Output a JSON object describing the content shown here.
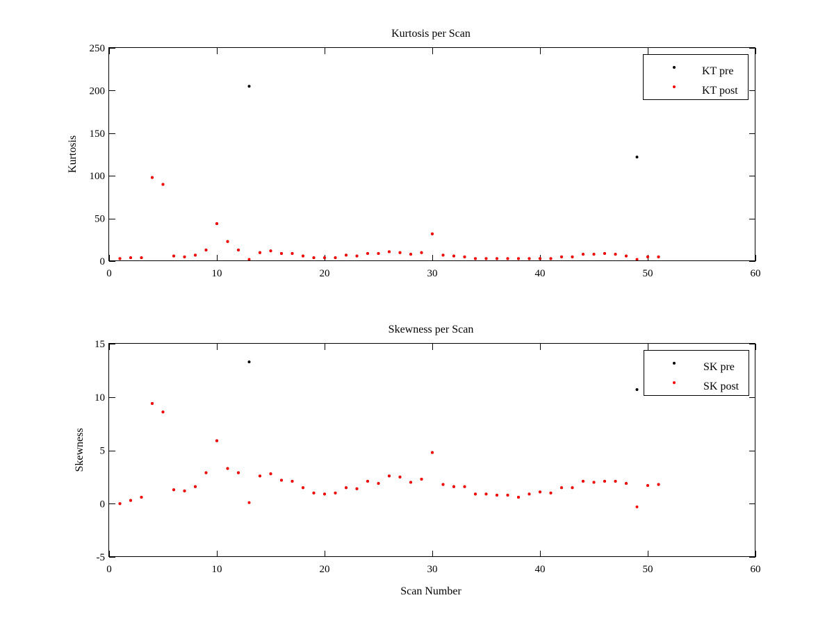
{
  "chart_data": [
    {
      "type": "scatter",
      "title": "Kurtosis per Scan",
      "xlabel": "",
      "ylabel": "Kurtosis",
      "xlim": [
        0,
        60
      ],
      "ylim": [
        0,
        250
      ],
      "xticks": [
        0,
        10,
        20,
        30,
        40,
        50,
        60
      ],
      "yticks": [
        0,
        50,
        100,
        150,
        200,
        250
      ],
      "grid": false,
      "legend_position": "top-right",
      "series": [
        {
          "name": "KT pre",
          "color": "#000000",
          "marker": "dot",
          "x": [
            1,
            2,
            3,
            4,
            5,
            6,
            7,
            8,
            9,
            10,
            11,
            12,
            13,
            14,
            15,
            16,
            17,
            18,
            19,
            20,
            21,
            22,
            23,
            24,
            25,
            26,
            27,
            28,
            29,
            30,
            31,
            32,
            33,
            34,
            35,
            36,
            37,
            38,
            39,
            40,
            41,
            42,
            43,
            44,
            45,
            46,
            47,
            48,
            49,
            50,
            51
          ],
          "y": [
            3,
            4,
            4,
            98,
            90,
            6,
            5,
            7,
            13,
            44,
            23,
            13,
            205,
            10,
            12,
            9,
            9,
            6,
            4,
            4,
            4,
            7,
            6,
            9,
            9,
            11,
            10,
            8,
            10,
            32,
            7,
            6,
            5,
            3,
            3,
            3,
            3,
            3,
            3,
            3,
            3,
            5,
            5,
            8,
            8,
            9,
            8,
            6,
            122,
            5,
            5
          ]
        },
        {
          "name": "KT post",
          "color": "#ff0000",
          "marker": "dot",
          "x": [
            1,
            2,
            3,
            4,
            5,
            6,
            7,
            8,
            9,
            10,
            11,
            12,
            13,
            14,
            15,
            16,
            17,
            18,
            19,
            20,
            21,
            22,
            23,
            24,
            25,
            26,
            27,
            28,
            29,
            30,
            31,
            32,
            33,
            34,
            35,
            36,
            37,
            38,
            39,
            40,
            41,
            42,
            43,
            44,
            45,
            46,
            47,
            48,
            49,
            50,
            51
          ],
          "y": [
            3,
            4,
            4,
            98,
            90,
            6,
            5,
            7,
            13,
            44,
            23,
            13,
            2,
            10,
            12,
            9,
            9,
            6,
            4,
            4,
            4,
            7,
            6,
            9,
            9,
            11,
            10,
            8,
            10,
            32,
            7,
            6,
            5,
            3,
            3,
            3,
            3,
            3,
            3,
            3,
            3,
            5,
            5,
            8,
            8,
            9,
            8,
            6,
            2,
            5,
            5
          ]
        }
      ]
    },
    {
      "type": "scatter",
      "title": "Skewness per Scan",
      "xlabel": "Scan Number",
      "ylabel": "Skewness",
      "xlim": [
        0,
        60
      ],
      "ylim": [
        -5,
        15
      ],
      "xticks": [
        0,
        10,
        20,
        30,
        40,
        50,
        60
      ],
      "yticks": [
        -5,
        0,
        5,
        10,
        15
      ],
      "grid": false,
      "legend_position": "top-right",
      "series": [
        {
          "name": "SK pre",
          "color": "#000000",
          "marker": "dot",
          "x": [
            1,
            2,
            3,
            4,
            5,
            6,
            7,
            8,
            9,
            10,
            11,
            12,
            13,
            14,
            15,
            16,
            17,
            18,
            19,
            20,
            21,
            22,
            23,
            24,
            25,
            26,
            27,
            28,
            29,
            30,
            31,
            32,
            33,
            34,
            35,
            36,
            37,
            38,
            39,
            40,
            41,
            42,
            43,
            44,
            45,
            46,
            47,
            48,
            49,
            50,
            51
          ],
          "y": [
            0,
            0.3,
            0.6,
            9.4,
            8.6,
            1.3,
            1.2,
            1.6,
            2.9,
            5.9,
            3.3,
            2.9,
            13.3,
            2.6,
            2.8,
            2.2,
            2.1,
            1.5,
            1.0,
            0.9,
            1.0,
            1.5,
            1.4,
            2.1,
            1.9,
            2.6,
            2.5,
            2.0,
            2.3,
            4.8,
            1.8,
            1.6,
            1.6,
            0.9,
            0.9,
            0.8,
            0.8,
            0.6,
            0.9,
            1.1,
            1.0,
            1.5,
            1.5,
            2.1,
            2.0,
            2.1,
            2.1,
            1.9,
            10.7,
            1.7,
            1.8
          ]
        },
        {
          "name": "SK post",
          "color": "#ff0000",
          "marker": "dot",
          "x": [
            1,
            2,
            3,
            4,
            5,
            6,
            7,
            8,
            9,
            10,
            11,
            12,
            13,
            14,
            15,
            16,
            17,
            18,
            19,
            20,
            21,
            22,
            23,
            24,
            25,
            26,
            27,
            28,
            29,
            30,
            31,
            32,
            33,
            34,
            35,
            36,
            37,
            38,
            39,
            40,
            41,
            42,
            43,
            44,
            45,
            46,
            47,
            48,
            49,
            50,
            51
          ],
          "y": [
            0,
            0.3,
            0.6,
            9.4,
            8.6,
            1.3,
            1.2,
            1.6,
            2.9,
            5.9,
            3.3,
            2.9,
            0.1,
            2.6,
            2.8,
            2.2,
            2.1,
            1.5,
            1.0,
            0.9,
            1.0,
            1.5,
            1.4,
            2.1,
            1.9,
            2.6,
            2.5,
            2.0,
            2.3,
            4.8,
            1.8,
            1.6,
            1.6,
            0.9,
            0.9,
            0.8,
            0.8,
            0.6,
            0.9,
            1.1,
            1.0,
            1.5,
            1.5,
            2.1,
            2.0,
            2.1,
            2.1,
            1.9,
            -0.3,
            1.7,
            1.8
          ]
        }
      ]
    }
  ]
}
